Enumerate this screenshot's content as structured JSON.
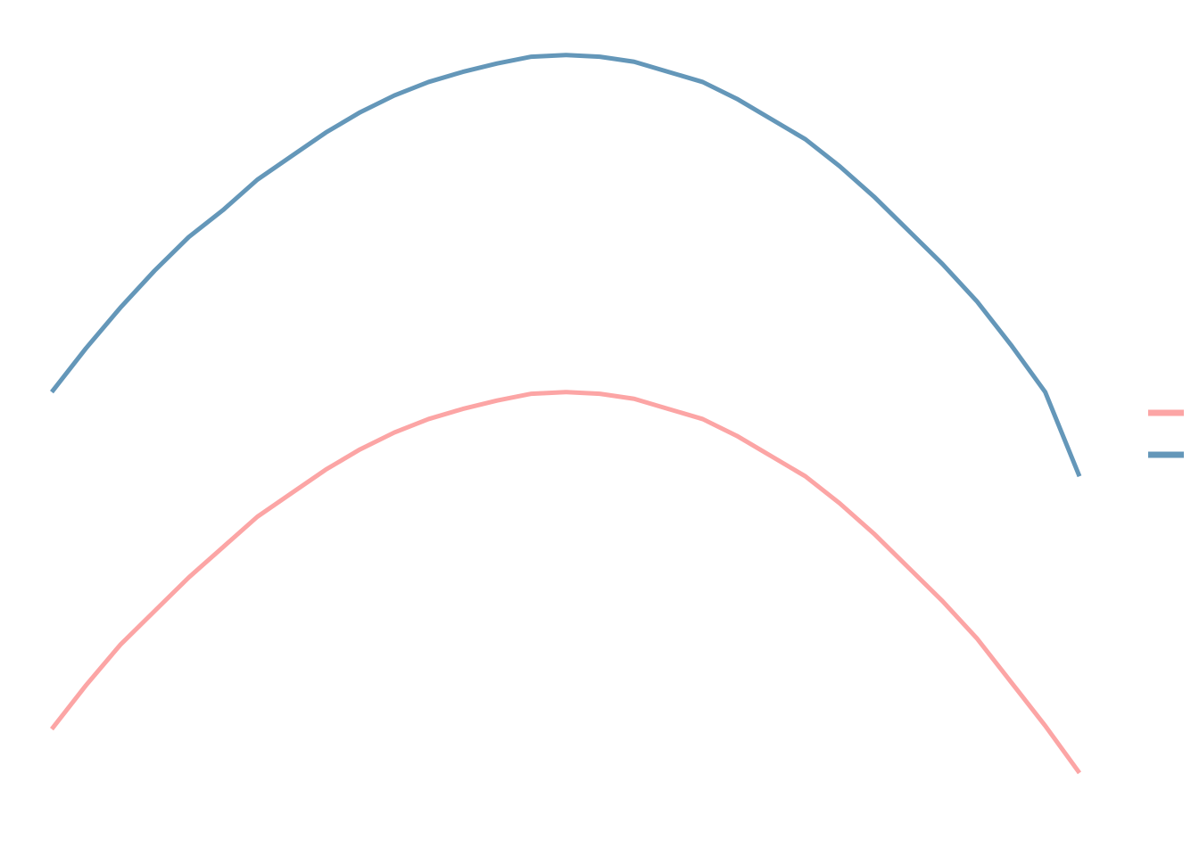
{
  "chart_data": {
    "type": "line",
    "title": "",
    "xlabel": "",
    "ylabel": "",
    "grid": false,
    "axes_visible": false,
    "legend_placement": "right",
    "xlim": [
      0,
      30
    ],
    "ylim": [
      0,
      25
    ],
    "x": [
      0,
      1,
      2,
      3,
      4,
      5,
      6,
      7,
      8,
      9,
      10,
      11,
      12,
      13,
      14,
      15,
      16,
      17,
      18,
      19,
      20,
      21,
      22,
      23,
      24,
      25,
      26,
      27,
      28,
      29,
      30
    ],
    "series": [
      {
        "color": "#fca5a5",
        "values": [
          3.5,
          4.8,
          6.0,
          7.0,
          8.0,
          8.9,
          9.8,
          10.5,
          11.2,
          11.8,
          12.3,
          12.7,
          13.0,
          13.25,
          13.45,
          13.5,
          13.45,
          13.3,
          13.0,
          12.7,
          12.2,
          11.6,
          11.0,
          10.2,
          9.3,
          8.3,
          7.3,
          6.2,
          4.9,
          3.6,
          2.2
        ]
      },
      {
        "color": "#6497b9",
        "values": [
          13.5,
          14.8,
          16.0,
          17.1,
          18.1,
          18.9,
          19.8,
          20.5,
          21.2,
          21.8,
          22.3,
          22.7,
          23.0,
          23.25,
          23.45,
          23.5,
          23.45,
          23.3,
          23.0,
          22.7,
          22.2,
          21.6,
          21.0,
          20.2,
          19.3,
          18.3,
          17.3,
          16.2,
          14.9,
          13.5,
          11.0
        ]
      }
    ]
  }
}
